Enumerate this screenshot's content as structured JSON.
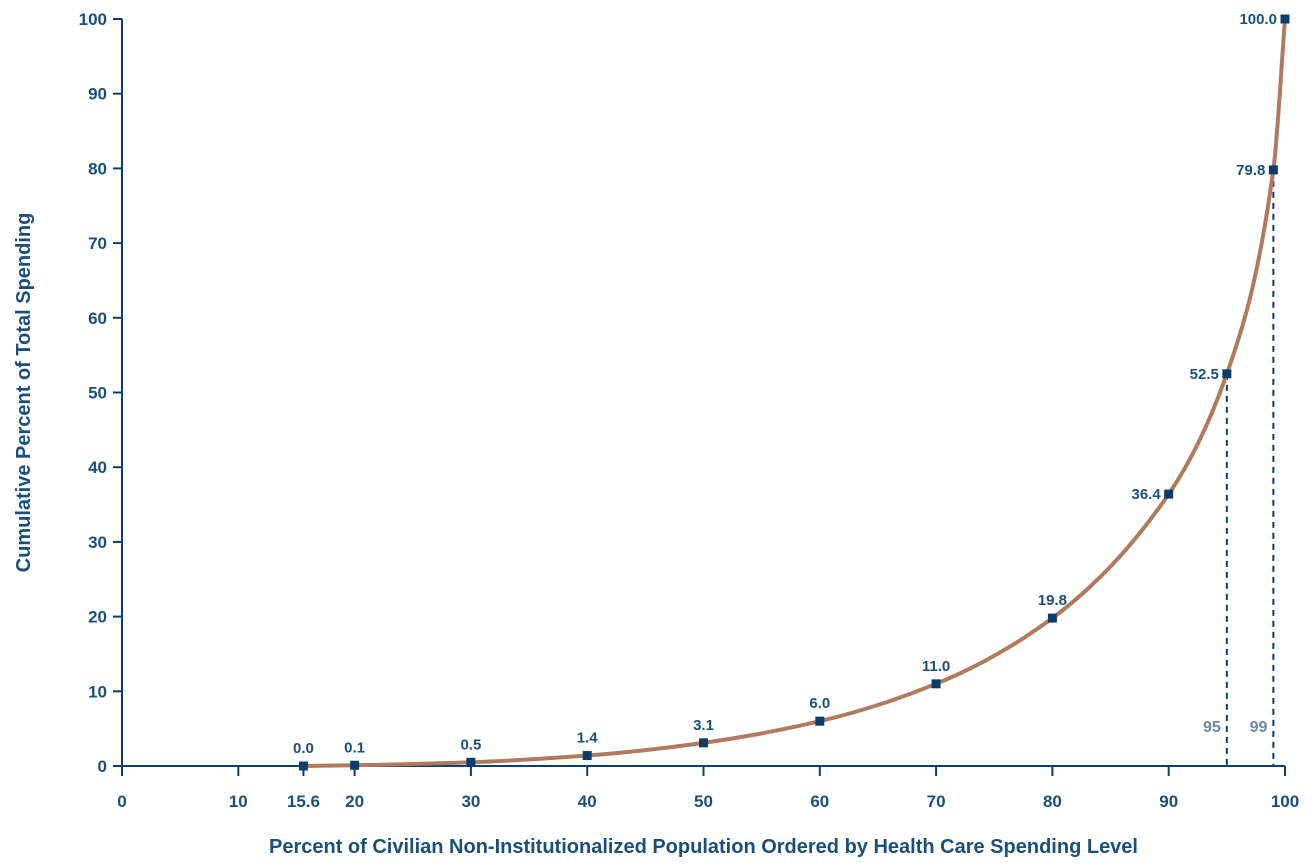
{
  "chart_data": {
    "type": "line",
    "title": "",
    "xlabel": "Percent of Civilian Non-Institutionalized Population Ordered by Health Care Spending Level",
    "ylabel": "Cumulative Percent of Total Spending",
    "xlim": [
      0,
      100
    ],
    "ylim": [
      0,
      100
    ],
    "x_ticks": [
      0,
      10,
      15.6,
      20,
      30,
      40,
      50,
      60,
      70,
      80,
      90,
      100
    ],
    "y_ticks": [
      0,
      10,
      20,
      30,
      40,
      50,
      60,
      70,
      80,
      90,
      100
    ],
    "grid": false,
    "series": [
      {
        "x": [
          15.6,
          20,
          30,
          40,
          50,
          60,
          70,
          80,
          90,
          95,
          99,
          100
        ],
        "y": [
          0.0,
          0.1,
          0.5,
          1.4,
          3.1,
          6.0,
          11.0,
          19.8,
          36.4,
          52.5,
          79.8,
          100.0
        ],
        "labels": [
          "0.0",
          "0.1",
          "0.5",
          "1.4",
          "3.1",
          "6.0",
          "11.0",
          "19.8",
          "36.4",
          "52.5",
          "79.8",
          "100.0"
        ]
      }
    ],
    "reference_lines": [
      {
        "x": 95,
        "label": "95"
      },
      {
        "x": 99,
        "label": "99"
      }
    ],
    "colors": {
      "curve": "#b07a5e",
      "marker": "#0b3d6b",
      "axis": "#0b3d6b",
      "text": "#1b4f7a",
      "reference": "#0b3d6b",
      "reference_text": "#6e87a6"
    }
  }
}
